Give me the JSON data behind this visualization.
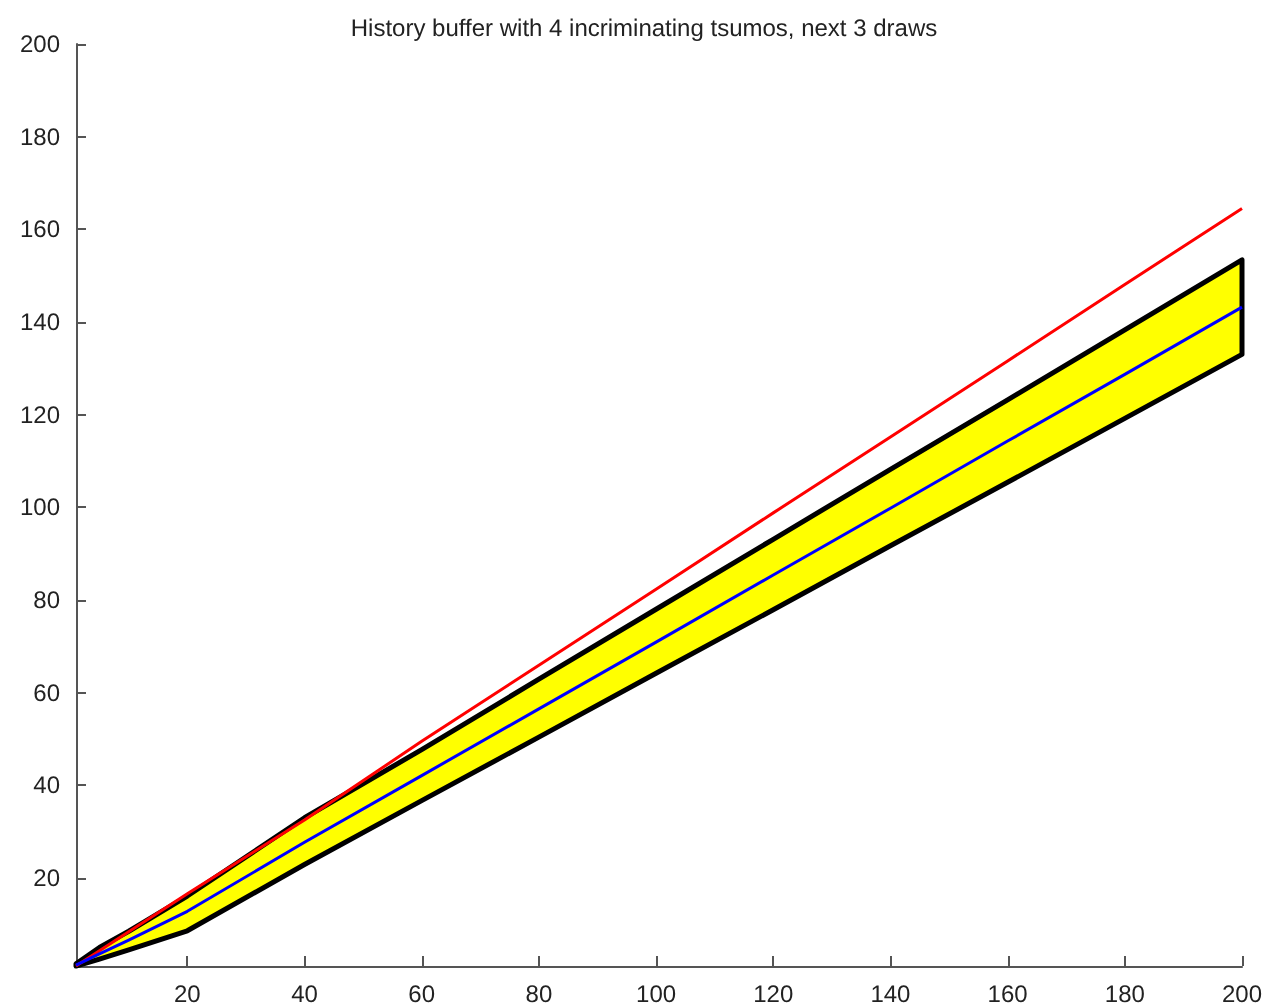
{
  "chart_data": {
    "type": "line",
    "title": "History buffer with 4 incriminating tsumos, next 3 draws",
    "x": [
      1,
      5,
      10,
      20,
      40,
      60,
      80,
      100,
      120,
      140,
      160,
      180,
      200
    ],
    "series": [
      {
        "color": "#ff0000",
        "values": [
          1,
          4.3,
          8.4,
          16.6,
          32.5,
          49.5,
          65.9,
          82.3,
          98.8,
          115.2,
          131.6,
          148.1,
          164.5
        ]
      },
      {
        "color": "#0000ff",
        "values": [
          1.2,
          3.6,
          6.6,
          12.8,
          27.7,
          42.1,
          56.5,
          70.9,
          85.4,
          99.8,
          114.3,
          128.7,
          143.2
        ],
        "lower": [
          1,
          2.5,
          4.5,
          8.6,
          22.9,
          36.7,
          50.4,
          64.2,
          77.9,
          91.7,
          105.4,
          119.2,
          133
        ],
        "upper": [
          1.5,
          5,
          8.5,
          16.1,
          33,
          47.7,
          62.9,
          78,
          93.1,
          108.2,
          123.2,
          138.3,
          153.4
        ]
      }
    ],
    "xlim": [
      1,
      200
    ],
    "ylim": [
      1,
      200
    ],
    "xticks": [
      20,
      40,
      60,
      80,
      100,
      120,
      140,
      160,
      180,
      200
    ],
    "yticks": [
      20,
      40,
      60,
      80,
      100,
      120,
      140,
      160,
      180,
      200
    ],
    "grid": false,
    "marker": "none",
    "line_style": "solid"
  }
}
